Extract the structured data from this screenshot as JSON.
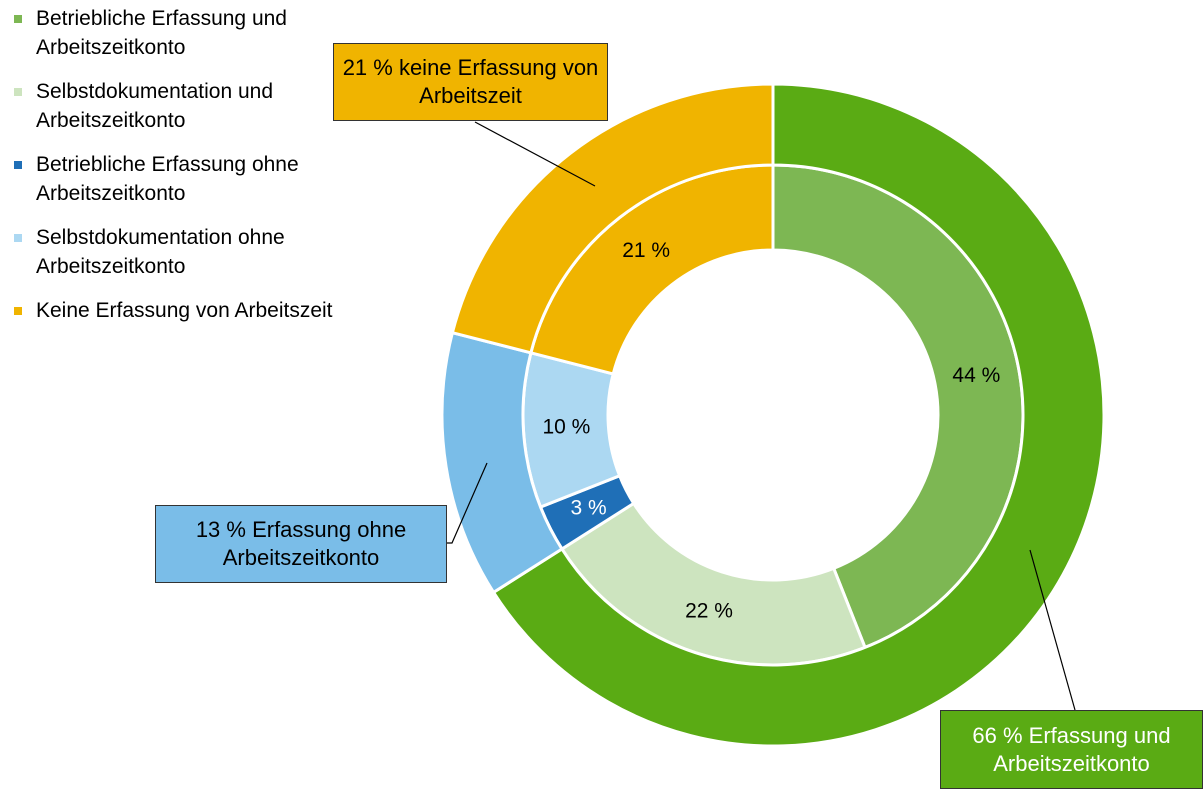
{
  "chart_data": {
    "type": "donut",
    "rings": [
      {
        "categories": [
          "Betriebliche Erfassung und Arbeitszeitkonto",
          "Selbstdokumentation und Arbeitszeitkonto",
          "Betriebliche Erfassung ohne Arbeitszeitkonto",
          "Selbstdokumentation ohne Arbeitszeitkonto",
          "Keine Erfassung von Arbeitszeit"
        ],
        "values": [
          44,
          22,
          3,
          10,
          21
        ],
        "value_labels": [
          "44 %",
          "22 %",
          "3 %",
          "10 %",
          "21 %"
        ],
        "colors": [
          "#7db753",
          "#cde4bf",
          "#1f6fb7",
          "#acd8f2",
          "#f0b400"
        ]
      },
      {
        "values": [
          66,
          13,
          21
        ],
        "value_labels": [
          "66 % Erfassung und Arbeitszeitkonto",
          "13 % Erfassung ohne Arbeitszeitkonto",
          "21 % keine Erfassung von Arbeitszeit"
        ],
        "colors": [
          "#5aab14",
          "#7abde8",
          "#f0b400"
        ]
      }
    ]
  }
}
